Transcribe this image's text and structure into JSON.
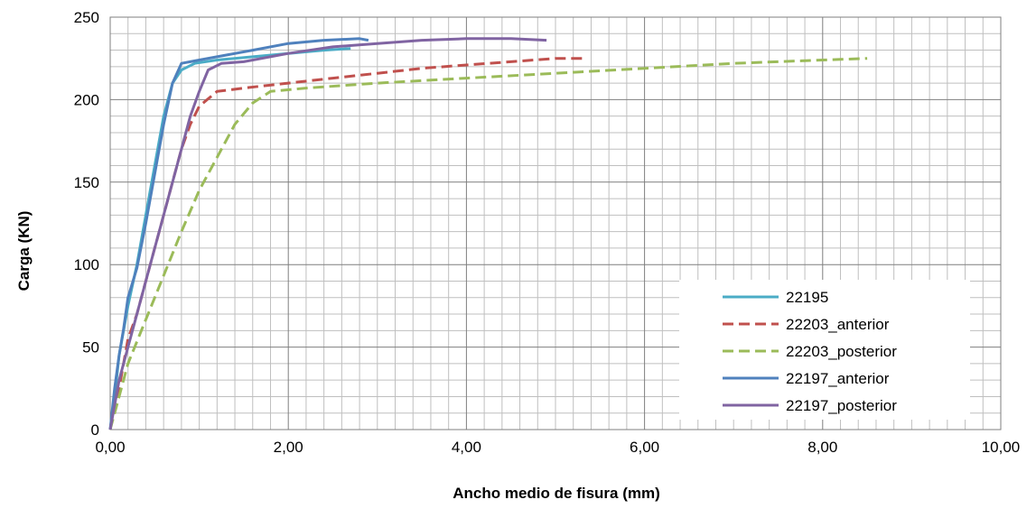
{
  "chart_data": {
    "type": "line",
    "xlabel": "Ancho medio de fisura (mm)",
    "ylabel": "Carga (KN)",
    "xlim": [
      0,
      10
    ],
    "ylim": [
      0,
      250
    ],
    "x_major_ticks": [
      "0,00",
      "2,00",
      "4,00",
      "6,00",
      "8,00",
      "10,00"
    ],
    "y_major_ticks": [
      "0",
      "50",
      "100",
      "150",
      "200",
      "250"
    ],
    "x_minor_step": 0.2,
    "y_minor_step": 10,
    "grid": true,
    "legend_position": "bottom-right",
    "series": [
      {
        "name": "22195",
        "color": "#4bacc6",
        "dash": "solid",
        "points": [
          [
            0,
            0
          ],
          [
            0.05,
            20
          ],
          [
            0.1,
            45
          ],
          [
            0.15,
            60
          ],
          [
            0.2,
            75
          ],
          [
            0.3,
            100
          ],
          [
            0.4,
            130
          ],
          [
            0.5,
            160
          ],
          [
            0.6,
            190
          ],
          [
            0.7,
            210
          ],
          [
            0.8,
            218
          ],
          [
            0.95,
            222
          ],
          [
            1.2,
            224
          ],
          [
            1.6,
            226
          ],
          [
            2.0,
            228
          ],
          [
            2.4,
            230
          ],
          [
            2.7,
            231
          ]
        ]
      },
      {
        "name": "22203_anterior",
        "color": "#c0504d",
        "dash": "dashed",
        "points": [
          [
            0,
            0
          ],
          [
            0.1,
            25
          ],
          [
            0.15,
            40
          ],
          [
            0.2,
            55
          ],
          [
            0.3,
            70
          ],
          [
            0.4,
            90
          ],
          [
            0.5,
            110
          ],
          [
            0.6,
            130
          ],
          [
            0.7,
            150
          ],
          [
            0.8,
            170
          ],
          [
            0.9,
            185
          ],
          [
            1.0,
            196
          ],
          [
            1.2,
            205
          ],
          [
            1.5,
            207
          ],
          [
            2.0,
            210
          ],
          [
            2.5,
            213
          ],
          [
            3.0,
            216
          ],
          [
            3.5,
            219
          ],
          [
            4.0,
            221
          ],
          [
            4.5,
            223
          ],
          [
            5.0,
            225
          ],
          [
            5.3,
            225
          ]
        ]
      },
      {
        "name": "22203_posterior",
        "color": "#9bbb59",
        "dash": "dashed",
        "points": [
          [
            0,
            0
          ],
          [
            0.1,
            20
          ],
          [
            0.2,
            40
          ],
          [
            0.35,
            60
          ],
          [
            0.5,
            80
          ],
          [
            0.65,
            100
          ],
          [
            0.8,
            120
          ],
          [
            1.0,
            145
          ],
          [
            1.2,
            165
          ],
          [
            1.4,
            185
          ],
          [
            1.6,
            198
          ],
          [
            1.8,
            205
          ],
          [
            2.2,
            207
          ],
          [
            3.0,
            210
          ],
          [
            4.0,
            213
          ],
          [
            5.0,
            216
          ],
          [
            6.0,
            219
          ],
          [
            7.0,
            222
          ],
          [
            8.0,
            224
          ],
          [
            8.5,
            225
          ]
        ]
      },
      {
        "name": "22197_anterior",
        "color": "#4f81bd",
        "dash": "solid",
        "points": [
          [
            0,
            0
          ],
          [
            0.05,
            25
          ],
          [
            0.1,
            45
          ],
          [
            0.15,
            61
          ],
          [
            0.2,
            80
          ],
          [
            0.3,
            98
          ],
          [
            0.4,
            125
          ],
          [
            0.5,
            155
          ],
          [
            0.6,
            185
          ],
          [
            0.7,
            210
          ],
          [
            0.8,
            222
          ],
          [
            0.9,
            223
          ],
          [
            1.0,
            224
          ],
          [
            1.2,
            226
          ],
          [
            1.6,
            230
          ],
          [
            2.0,
            234
          ],
          [
            2.4,
            236
          ],
          [
            2.8,
            237
          ],
          [
            2.9,
            236
          ]
        ]
      },
      {
        "name": "22197_posterior",
        "color": "#8064a2",
        "dash": "solid",
        "points": [
          [
            0,
            0
          ],
          [
            0.1,
            30
          ],
          [
            0.2,
            50
          ],
          [
            0.35,
            80
          ],
          [
            0.5,
            110
          ],
          [
            0.65,
            140
          ],
          [
            0.8,
            170
          ],
          [
            0.9,
            190
          ],
          [
            1.0,
            205
          ],
          [
            1.1,
            218
          ],
          [
            1.25,
            222
          ],
          [
            1.5,
            223
          ],
          [
            2.0,
            228
          ],
          [
            2.5,
            232
          ],
          [
            3.0,
            234
          ],
          [
            3.5,
            236
          ],
          [
            4.0,
            237
          ],
          [
            4.5,
            237
          ],
          [
            4.9,
            236
          ]
        ]
      }
    ]
  }
}
